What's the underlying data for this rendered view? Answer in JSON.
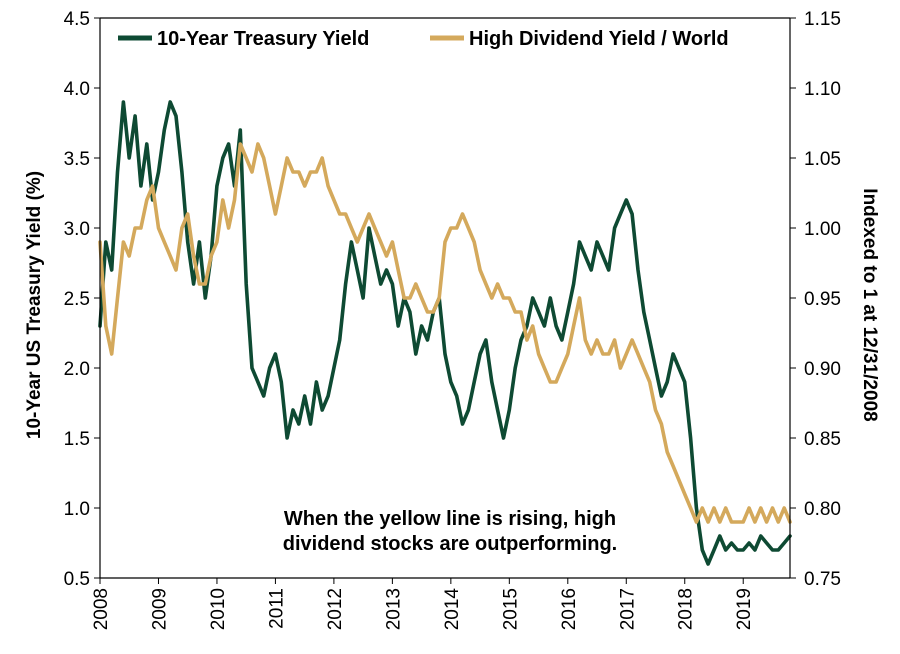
{
  "chart_data": {
    "type": "line",
    "title": "",
    "xlabel": "",
    "ylabel": "10-Year US Treasury Yield (%)",
    "y2label": "Indexed to 1 at 12/31/2008",
    "xlim": [
      2008,
      2019.8
    ],
    "ylim": [
      0.5,
      4.5
    ],
    "y2lim": [
      0.75,
      1.15
    ],
    "x_ticks": [
      "2008",
      "2009",
      "2010",
      "2011",
      "2012",
      "2013",
      "2014",
      "2015",
      "2016",
      "2017",
      "2018",
      "2019"
    ],
    "y_ticks": [
      "0.5",
      "1.0",
      "1.5",
      "2.0",
      "2.5",
      "3.0",
      "3.5",
      "4.0",
      "4.5"
    ],
    "y2_ticks": [
      "0.75",
      "0.80",
      "0.85",
      "0.90",
      "0.95",
      "1.00",
      "1.05",
      "1.10",
      "1.15"
    ],
    "legend_position": "top",
    "annotation": [
      "When the yellow line is rising, high",
      "dividend stocks are outperforming."
    ],
    "series": [
      {
        "name": "10-Year Treasury Yield",
        "axis": "left",
        "color": "#0e4a33",
        "x": [
          2008.0,
          2008.1,
          2008.2,
          2008.3,
          2008.4,
          2008.5,
          2008.6,
          2008.7,
          2008.8,
          2008.9,
          2009.0,
          2009.1,
          2009.2,
          2009.3,
          2009.4,
          2009.5,
          2009.6,
          2009.7,
          2009.8,
          2009.9,
          2010.0,
          2010.1,
          2010.2,
          2010.3,
          2010.4,
          2010.5,
          2010.6,
          2010.7,
          2010.8,
          2010.9,
          2011.0,
          2011.1,
          2011.2,
          2011.3,
          2011.4,
          2011.5,
          2011.6,
          2011.7,
          2011.8,
          2011.9,
          2012.0,
          2012.1,
          2012.2,
          2012.3,
          2012.4,
          2012.5,
          2012.6,
          2012.7,
          2012.8,
          2012.9,
          2013.0,
          2013.1,
          2013.2,
          2013.3,
          2013.4,
          2013.5,
          2013.6,
          2013.7,
          2013.8,
          2013.9,
          2014.0,
          2014.1,
          2014.2,
          2014.3,
          2014.4,
          2014.5,
          2014.6,
          2014.7,
          2014.8,
          2014.9,
          2015.0,
          2015.1,
          2015.2,
          2015.3,
          2015.4,
          2015.5,
          2015.6,
          2015.7,
          2015.8,
          2015.9,
          2016.0,
          2016.1,
          2016.2,
          2016.3,
          2016.4,
          2016.5,
          2016.6,
          2016.7,
          2016.8,
          2016.9,
          2017.0,
          2017.1,
          2017.2,
          2017.3,
          2017.4,
          2017.5,
          2017.6,
          2017.7,
          2017.8,
          2017.9,
          2018.0,
          2018.1,
          2018.2,
          2018.3,
          2018.4,
          2018.5,
          2018.6,
          2018.7,
          2018.8,
          2018.9,
          2019.0,
          2019.1,
          2019.2,
          2019.3,
          2019.4,
          2019.5,
          2019.6,
          2019.7,
          2019.8
        ],
        "values": [
          2.3,
          2.9,
          2.7,
          3.4,
          3.9,
          3.5,
          3.8,
          3.3,
          3.6,
          3.2,
          3.4,
          3.7,
          3.9,
          3.8,
          3.4,
          2.9,
          2.6,
          2.9,
          2.5,
          2.8,
          3.3,
          3.5,
          3.6,
          3.3,
          3.7,
          2.6,
          2.0,
          1.9,
          1.8,
          2.0,
          2.1,
          1.9,
          1.5,
          1.7,
          1.6,
          1.8,
          1.6,
          1.9,
          1.7,
          1.8,
          2.0,
          2.2,
          2.6,
          2.9,
          2.7,
          2.5,
          3.0,
          2.8,
          2.6,
          2.7,
          2.6,
          2.3,
          2.5,
          2.4,
          2.1,
          2.3,
          2.2,
          2.4,
          2.5,
          2.1,
          1.9,
          1.8,
          1.6,
          1.7,
          1.9,
          2.1,
          2.2,
          1.9,
          1.7,
          1.5,
          1.7,
          2.0,
          2.2,
          2.3,
          2.5,
          2.4,
          2.3,
          2.5,
          2.3,
          2.2,
          2.4,
          2.6,
          2.9,
          2.8,
          2.7,
          2.9,
          2.8,
          2.7,
          3.0,
          3.1,
          3.2,
          3.1,
          2.7,
          2.4,
          2.2,
          2.0,
          1.8,
          1.9,
          2.1,
          2.0,
          1.9,
          1.5,
          1.0,
          0.7,
          0.6,
          0.7,
          0.8,
          0.7,
          0.75,
          0.7,
          0.7,
          0.75,
          0.7,
          0.8,
          0.75,
          0.7,
          0.7,
          0.75,
          0.8
        ]
      },
      {
        "name": "High Dividend Yield / World",
        "axis": "right",
        "color": "#d4a95c",
        "x": [
          2008.0,
          2008.1,
          2008.2,
          2008.3,
          2008.4,
          2008.5,
          2008.6,
          2008.7,
          2008.8,
          2008.9,
          2009.0,
          2009.1,
          2009.2,
          2009.3,
          2009.4,
          2009.5,
          2009.6,
          2009.7,
          2009.8,
          2009.9,
          2010.0,
          2010.1,
          2010.2,
          2010.3,
          2010.4,
          2010.5,
          2010.6,
          2010.7,
          2010.8,
          2010.9,
          2011.0,
          2011.1,
          2011.2,
          2011.3,
          2011.4,
          2011.5,
          2011.6,
          2011.7,
          2011.8,
          2011.9,
          2012.0,
          2012.1,
          2012.2,
          2012.3,
          2012.4,
          2012.5,
          2012.6,
          2012.7,
          2012.8,
          2012.9,
          2013.0,
          2013.1,
          2013.2,
          2013.3,
          2013.4,
          2013.5,
          2013.6,
          2013.7,
          2013.8,
          2013.9,
          2014.0,
          2014.1,
          2014.2,
          2014.3,
          2014.4,
          2014.5,
          2014.6,
          2014.7,
          2014.8,
          2014.9,
          2015.0,
          2015.1,
          2015.2,
          2015.3,
          2015.4,
          2015.5,
          2015.6,
          2015.7,
          2015.8,
          2015.9,
          2016.0,
          2016.1,
          2016.2,
          2016.3,
          2016.4,
          2016.5,
          2016.6,
          2016.7,
          2016.8,
          2016.9,
          2017.0,
          2017.1,
          2017.2,
          2017.3,
          2017.4,
          2017.5,
          2017.6,
          2017.7,
          2017.8,
          2017.9,
          2018.0,
          2018.1,
          2018.2,
          2018.3,
          2018.4,
          2018.5,
          2018.6,
          2018.7,
          2018.8,
          2018.9,
          2019.0,
          2019.1,
          2019.2,
          2019.3,
          2019.4,
          2019.5,
          2019.6,
          2019.7,
          2019.8
        ],
        "values": [
          0.99,
          0.93,
          0.91,
          0.95,
          0.99,
          0.98,
          1.0,
          1.0,
          1.02,
          1.03,
          1.0,
          0.99,
          0.98,
          0.97,
          1.0,
          1.01,
          0.98,
          0.96,
          0.96,
          0.98,
          0.99,
          1.02,
          1.0,
          1.02,
          1.06,
          1.05,
          1.04,
          1.06,
          1.05,
          1.03,
          1.01,
          1.03,
          1.05,
          1.04,
          1.04,
          1.03,
          1.04,
          1.04,
          1.05,
          1.03,
          1.02,
          1.01,
          1.01,
          1.0,
          0.99,
          1.0,
          1.01,
          1.0,
          0.99,
          0.98,
          0.99,
          0.97,
          0.95,
          0.95,
          0.96,
          0.95,
          0.94,
          0.94,
          0.95,
          0.99,
          1.0,
          1.0,
          1.01,
          1.0,
          0.99,
          0.97,
          0.96,
          0.95,
          0.96,
          0.95,
          0.95,
          0.94,
          0.94,
          0.92,
          0.93,
          0.91,
          0.9,
          0.89,
          0.89,
          0.9,
          0.91,
          0.93,
          0.95,
          0.92,
          0.91,
          0.92,
          0.91,
          0.91,
          0.92,
          0.9,
          0.91,
          0.92,
          0.91,
          0.9,
          0.89,
          0.87,
          0.86,
          0.84,
          0.83,
          0.82,
          0.81,
          0.8,
          0.79,
          0.8,
          0.79,
          0.8,
          0.79,
          0.8,
          0.79,
          0.79,
          0.79,
          0.8,
          0.79,
          0.8,
          0.79,
          0.8,
          0.79,
          0.8,
          0.79
        ]
      }
    ]
  }
}
